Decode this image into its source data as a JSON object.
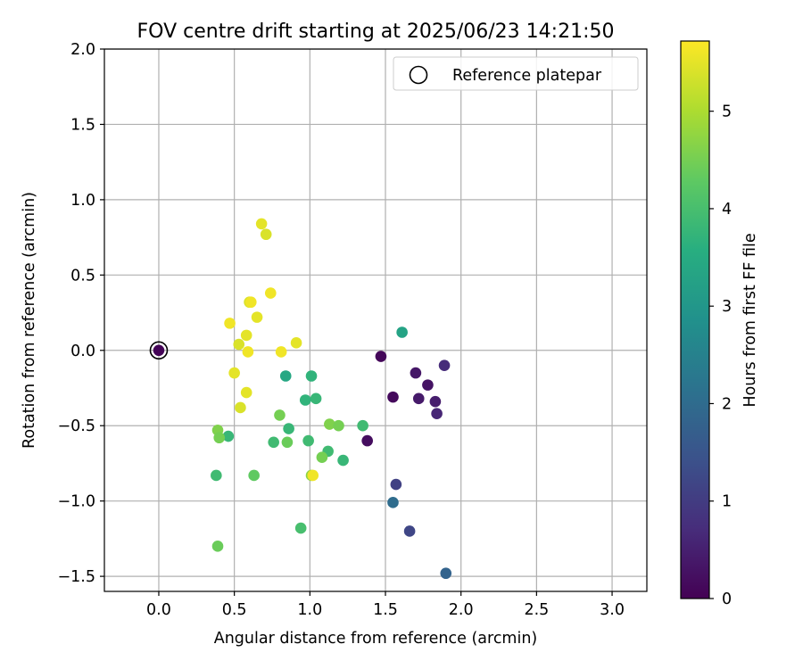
{
  "chart_data": {
    "type": "scatter",
    "title": "FOV centre drift starting at 2025/06/23 14:21:50",
    "xlabel": "Angular distance from reference (arcmin)",
    "ylabel": "Rotation from reference (arcmin)",
    "xlim": [
      -0.36,
      3.23
    ],
    "ylim": [
      -1.6,
      2.0
    ],
    "xticks": [
      0.0,
      0.5,
      1.0,
      1.5,
      2.0,
      2.5,
      3.0
    ],
    "xtick_labels": [
      "0.0",
      "0.5",
      "1.0",
      "1.5",
      "2.0",
      "2.5",
      "3.0"
    ],
    "yticks": [
      -1.5,
      -1.0,
      -0.5,
      0.0,
      0.5,
      1.0,
      1.5,
      2.0
    ],
    "ytick_labels": [
      "−1.5",
      "−1.0",
      "−0.5",
      "0.0",
      "0.5",
      "1.0",
      "1.5",
      "2.0"
    ],
    "grid": true,
    "legend": {
      "position": "upper right",
      "entries": [
        "Reference platepar"
      ]
    },
    "colorbar": {
      "label": "Hours from first FF file",
      "colormap": "viridis",
      "range": [
        0,
        5.72
      ],
      "ticks": [
        0,
        1,
        2,
        3,
        4,
        5
      ],
      "tick_labels": [
        "0",
        "1",
        "2",
        "3",
        "4",
        "5"
      ]
    },
    "reference_point": {
      "x": 0.0,
      "y": 0.0
    },
    "points": [
      {
        "x": 0.0,
        "y": 0.0,
        "c": 0.05
      },
      {
        "x": 1.47,
        "y": -0.04,
        "c": 0.1
      },
      {
        "x": 1.55,
        "y": -0.31,
        "c": 0.15
      },
      {
        "x": 1.38,
        "y": -0.6,
        "c": 0.2
      },
      {
        "x": 1.7,
        "y": -0.15,
        "c": 0.35
      },
      {
        "x": 1.72,
        "y": -0.32,
        "c": 0.4
      },
      {
        "x": 1.78,
        "y": -0.23,
        "c": 0.3
      },
      {
        "x": 1.83,
        "y": -0.34,
        "c": 0.45
      },
      {
        "x": 1.84,
        "y": -0.42,
        "c": 0.6
      },
      {
        "x": 1.89,
        "y": -0.1,
        "c": 0.7
      },
      {
        "x": 1.57,
        "y": -0.89,
        "c": 1.1
      },
      {
        "x": 1.66,
        "y": -1.2,
        "c": 1.2
      },
      {
        "x": 1.55,
        "y": -1.01,
        "c": 2.0
      },
      {
        "x": 1.9,
        "y": -1.48,
        "c": 1.8
      },
      {
        "x": 1.61,
        "y": 0.12,
        "c": 3.3
      },
      {
        "x": 0.84,
        "y": -0.17,
        "c": 3.4
      },
      {
        "x": 1.01,
        "y": -0.17,
        "c": 3.7
      },
      {
        "x": 1.04,
        "y": -0.32,
        "c": 3.8
      },
      {
        "x": 0.97,
        "y": -0.33,
        "c": 3.7
      },
      {
        "x": 0.86,
        "y": -0.52,
        "c": 3.8
      },
      {
        "x": 0.76,
        "y": -0.61,
        "c": 3.9
      },
      {
        "x": 0.99,
        "y": -0.6,
        "c": 3.9
      },
      {
        "x": 0.46,
        "y": -0.57,
        "c": 3.8
      },
      {
        "x": 1.35,
        "y": -0.5,
        "c": 3.9
      },
      {
        "x": 1.22,
        "y": -0.73,
        "c": 3.8
      },
      {
        "x": 1.12,
        "y": -0.67,
        "c": 3.9
      },
      {
        "x": 0.38,
        "y": -0.83,
        "c": 3.9
      },
      {
        "x": 0.94,
        "y": -1.18,
        "c": 4.0
      },
      {
        "x": 0.8,
        "y": -0.43,
        "c": 4.5
      },
      {
        "x": 0.85,
        "y": -0.61,
        "c": 4.4
      },
      {
        "x": 0.63,
        "y": -0.83,
        "c": 4.3
      },
      {
        "x": 1.08,
        "y": -0.71,
        "c": 4.5
      },
      {
        "x": 1.13,
        "y": -0.49,
        "c": 4.6
      },
      {
        "x": 1.19,
        "y": -0.5,
        "c": 4.5
      },
      {
        "x": 0.39,
        "y": -0.53,
        "c": 4.6
      },
      {
        "x": 0.4,
        "y": -0.58,
        "c": 4.5
      },
      {
        "x": 0.39,
        "y": -1.3,
        "c": 4.4
      },
      {
        "x": 1.01,
        "y": -0.83,
        "c": 4.7
      },
      {
        "x": 1.02,
        "y": -0.83,
        "c": 5.6
      },
      {
        "x": 0.68,
        "y": 0.84,
        "c": 5.5
      },
      {
        "x": 0.71,
        "y": 0.77,
        "c": 5.4
      },
      {
        "x": 0.74,
        "y": 0.38,
        "c": 5.6
      },
      {
        "x": 0.6,
        "y": 0.32,
        "c": 5.4
      },
      {
        "x": 0.61,
        "y": 0.32,
        "c": 5.6
      },
      {
        "x": 0.65,
        "y": 0.22,
        "c": 5.5
      },
      {
        "x": 0.47,
        "y": 0.18,
        "c": 5.6
      },
      {
        "x": 0.58,
        "y": 0.1,
        "c": 5.5
      },
      {
        "x": 0.53,
        "y": 0.04,
        "c": 5.4
      },
      {
        "x": 0.59,
        "y": -0.01,
        "c": 5.6
      },
      {
        "x": 0.81,
        "y": -0.01,
        "c": 5.6
      },
      {
        "x": 0.91,
        "y": 0.05,
        "c": 5.5
      },
      {
        "x": 0.5,
        "y": -0.15,
        "c": 5.5
      },
      {
        "x": 0.58,
        "y": -0.28,
        "c": 5.5
      },
      {
        "x": 0.54,
        "y": -0.38,
        "c": 5.4
      }
    ]
  }
}
